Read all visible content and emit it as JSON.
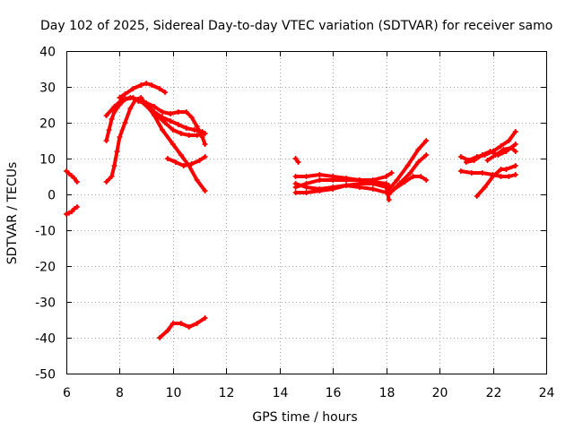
{
  "chart_data": {
    "type": "scatter",
    "title": "Day 102 of 2025, Sidereal Day-to-day VTEC variation (SDTVAR) for receiver samo",
    "xlabel": "GPS time / hours",
    "ylabel": "SDTVAR / TECUs",
    "xlim": [
      6,
      24
    ],
    "ylim": [
      -50,
      40
    ],
    "xticks": [
      6,
      8,
      10,
      12,
      14,
      16,
      18,
      20,
      22,
      24
    ],
    "yticks": [
      -50,
      -40,
      -30,
      -20,
      -10,
      0,
      10,
      20,
      30,
      40
    ],
    "grid": true,
    "marker_color": "#ff0000",
    "series": [
      {
        "name": "s1",
        "points": [
          [
            6.0,
            6.5
          ],
          [
            6.1,
            5.8
          ],
          [
            6.2,
            5.2
          ],
          [
            6.3,
            4.5
          ],
          [
            6.4,
            3.5
          ]
        ]
      },
      {
        "name": "s2",
        "points": [
          [
            6.0,
            -5.5
          ],
          [
            6.1,
            -5.2
          ],
          [
            6.2,
            -4.8
          ],
          [
            6.3,
            -4.0
          ],
          [
            6.4,
            -3.5
          ]
        ]
      },
      {
        "name": "s3",
        "points": [
          [
            7.5,
            3.5
          ],
          [
            7.7,
            5
          ],
          [
            7.8,
            8
          ],
          [
            7.9,
            12
          ],
          [
            8.0,
            16
          ],
          [
            8.2,
            20
          ],
          [
            8.4,
            24
          ],
          [
            8.6,
            26.5
          ],
          [
            8.8,
            27
          ],
          [
            9.0,
            25
          ],
          [
            9.3,
            22
          ],
          [
            9.6,
            18
          ],
          [
            10.0,
            14
          ],
          [
            10.3,
            11
          ],
          [
            10.6,
            8
          ],
          [
            10.9,
            4
          ],
          [
            11.2,
            1
          ]
        ]
      },
      {
        "name": "s4",
        "points": [
          [
            7.5,
            15
          ],
          [
            7.6,
            18
          ],
          [
            7.7,
            21
          ],
          [
            7.8,
            23
          ],
          [
            8.0,
            25
          ],
          [
            8.2,
            26.5
          ],
          [
            8.5,
            27
          ],
          [
            8.8,
            26
          ],
          [
            9.1,
            24
          ],
          [
            9.4,
            22
          ],
          [
            9.7,
            20
          ],
          [
            10.0,
            18
          ],
          [
            10.3,
            17
          ],
          [
            10.6,
            16.5
          ],
          [
            10.9,
            16.5
          ],
          [
            11.2,
            17
          ]
        ]
      },
      {
        "name": "s5",
        "points": [
          [
            7.5,
            22
          ],
          [
            7.8,
            24.5
          ],
          [
            8.1,
            26.5
          ],
          [
            8.4,
            27
          ],
          [
            8.7,
            26.5
          ],
          [
            9.0,
            25
          ],
          [
            9.3,
            23
          ],
          [
            9.6,
            21.5
          ],
          [
            9.9,
            20.5
          ],
          [
            10.2,
            19.5
          ],
          [
            10.5,
            18.5
          ],
          [
            10.8,
            18
          ],
          [
            11.1,
            17.5
          ]
        ]
      },
      {
        "name": "s6",
        "points": [
          [
            8.0,
            27
          ],
          [
            8.2,
            28
          ],
          [
            8.5,
            29.5
          ],
          [
            8.8,
            30.5
          ],
          [
            9.0,
            31
          ],
          [
            9.2,
            30.5
          ],
          [
            9.5,
            29.5
          ],
          [
            9.7,
            28.5
          ]
        ]
      },
      {
        "name": "s7",
        "points": [
          [
            8.7,
            26
          ],
          [
            9.0,
            25.5
          ],
          [
            9.3,
            24.5
          ],
          [
            9.6,
            23
          ],
          [
            9.9,
            22.5
          ],
          [
            10.2,
            23
          ],
          [
            10.5,
            23
          ],
          [
            10.7,
            21.5
          ],
          [
            10.9,
            19
          ],
          [
            11.1,
            16
          ],
          [
            11.2,
            14
          ]
        ]
      },
      {
        "name": "s8",
        "points": [
          [
            9.8,
            10
          ],
          [
            10.1,
            9
          ],
          [
            10.4,
            8
          ],
          [
            10.7,
            8.5
          ],
          [
            11.0,
            9.5
          ],
          [
            11.2,
            10.5
          ]
        ]
      },
      {
        "name": "s9",
        "points": [
          [
            9.5,
            -40
          ],
          [
            9.8,
            -38
          ],
          [
            10.0,
            -36
          ],
          [
            10.3,
            -36
          ],
          [
            10.6,
            -37
          ],
          [
            10.9,
            -36
          ],
          [
            11.2,
            -34.5
          ]
        ]
      },
      {
        "name": "s10",
        "points": [
          [
            14.6,
            10
          ],
          [
            14.7,
            9
          ]
        ]
      },
      {
        "name": "s11",
        "points": [
          [
            14.6,
            5
          ],
          [
            15.0,
            5
          ],
          [
            15.5,
            5.5
          ],
          [
            16.0,
            5
          ],
          [
            16.5,
            4.5
          ],
          [
            17.0,
            4
          ],
          [
            17.5,
            3.5
          ],
          [
            18.0,
            3
          ],
          [
            18.1,
            2.5
          ]
        ]
      },
      {
        "name": "s12",
        "points": [
          [
            14.6,
            2
          ],
          [
            15.0,
            3
          ],
          [
            15.5,
            4
          ],
          [
            16.0,
            4
          ],
          [
            16.5,
            4
          ],
          [
            17.0,
            4
          ],
          [
            17.5,
            4
          ],
          [
            18.0,
            5
          ],
          [
            18.2,
            6
          ]
        ]
      },
      {
        "name": "s13",
        "points": [
          [
            14.6,
            0.5
          ],
          [
            15.0,
            0.5
          ],
          [
            15.5,
            1
          ],
          [
            16.0,
            1.5
          ],
          [
            16.5,
            2.5
          ],
          [
            17.0,
            3
          ],
          [
            17.5,
            3
          ],
          [
            18.0,
            2
          ],
          [
            18.1,
            -1.5
          ]
        ]
      },
      {
        "name": "s14",
        "points": [
          [
            14.6,
            3
          ],
          [
            15.0,
            2
          ],
          [
            15.5,
            1.5
          ],
          [
            16.0,
            2
          ],
          [
            16.5,
            2.5
          ],
          [
            17.0,
            2
          ],
          [
            17.5,
            1.5
          ],
          [
            18.0,
            0.5
          ]
        ]
      },
      {
        "name": "s15",
        "points": [
          [
            18.0,
            0.5
          ],
          [
            18.4,
            4
          ],
          [
            18.8,
            8
          ],
          [
            19.2,
            12.5
          ],
          [
            19.5,
            15
          ]
        ]
      },
      {
        "name": "s16",
        "points": [
          [
            18.1,
            0
          ],
          [
            18.5,
            3
          ],
          [
            18.9,
            6
          ],
          [
            19.2,
            9
          ],
          [
            19.5,
            11
          ]
        ]
      },
      {
        "name": "s17",
        "points": [
          [
            18.3,
            1.5
          ],
          [
            18.7,
            3.5
          ],
          [
            19.0,
            5
          ],
          [
            19.3,
            5
          ],
          [
            19.5,
            4
          ]
        ]
      },
      {
        "name": "s18",
        "points": [
          [
            20.8,
            10.5
          ],
          [
            21.1,
            9.5
          ],
          [
            21.4,
            10.5
          ],
          [
            21.7,
            11
          ],
          [
            22.0,
            12
          ],
          [
            22.3,
            13.5
          ],
          [
            22.6,
            15
          ],
          [
            22.85,
            17.5
          ]
        ]
      },
      {
        "name": "s19",
        "points": [
          [
            20.8,
            6.5
          ],
          [
            21.2,
            6
          ],
          [
            21.6,
            6
          ],
          [
            22.0,
            5.5
          ],
          [
            22.3,
            5
          ],
          [
            22.6,
            5
          ],
          [
            22.85,
            5.5
          ]
        ]
      },
      {
        "name": "s20",
        "points": [
          [
            21.4,
            -0.5
          ],
          [
            21.7,
            2
          ],
          [
            22.0,
            5
          ],
          [
            22.3,
            7
          ],
          [
            22.5,
            7
          ],
          [
            22.85,
            8
          ]
        ]
      },
      {
        "name": "s21",
        "points": [
          [
            21.0,
            9
          ],
          [
            21.3,
            9.5
          ],
          [
            21.6,
            11
          ],
          [
            21.9,
            12
          ],
          [
            22.2,
            11
          ],
          [
            22.5,
            12
          ],
          [
            22.85,
            14
          ]
        ]
      },
      {
        "name": "s22",
        "points": [
          [
            21.8,
            9.5
          ],
          [
            22.1,
            11
          ],
          [
            22.4,
            12.5
          ],
          [
            22.7,
            13
          ],
          [
            22.85,
            12
          ]
        ]
      }
    ]
  }
}
